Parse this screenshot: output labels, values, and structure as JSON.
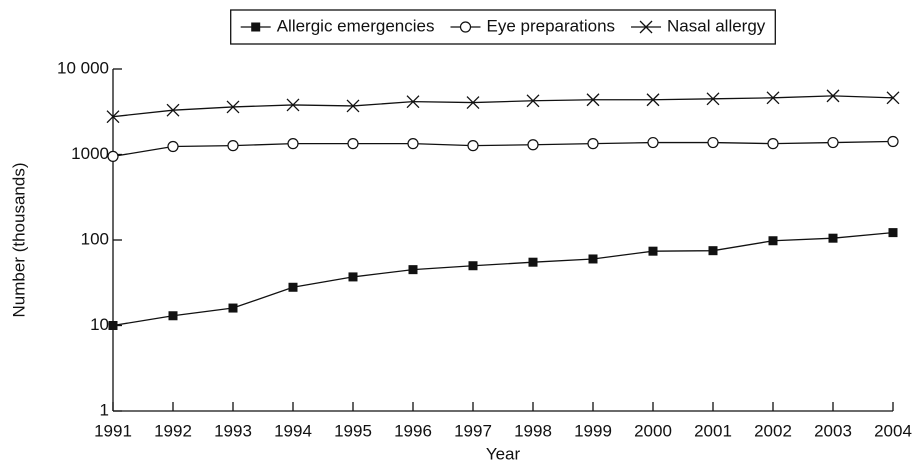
{
  "chart_data": {
    "type": "line",
    "x_label": "Year",
    "y_label": "Number (thousands)",
    "x": [
      1991,
      1992,
      1993,
      1994,
      1995,
      1996,
      1997,
      1998,
      1999,
      2000,
      2001,
      2002,
      2003,
      2004
    ],
    "xlim": [
      1991,
      2004
    ],
    "xticks": [
      1991,
      1992,
      1993,
      1994,
      1995,
      1996,
      1997,
      1998,
      1999,
      2000,
      2001,
      2002,
      2003,
      2004
    ],
    "ylim": [
      1,
      10000
    ],
    "y_scale": "log",
    "yticks": [
      1,
      10,
      100,
      1000,
      {
        "value": 10000,
        "label": "10 000"
      }
    ],
    "legend": "top",
    "series": [
      {
        "name": "Allergic emergencies",
        "color": "#111111",
        "marker": "square",
        "values": [
          10,
          13,
          16,
          28,
          37,
          45,
          50,
          55,
          60,
          74,
          75,
          98,
          105,
          122
        ]
      },
      {
        "name": "Eye preparations",
        "color": "#111111",
        "marker": "circle",
        "values": [
          950,
          1240,
          1270,
          1340,
          1340,
          1340,
          1270,
          1300,
          1340,
          1380,
          1380,
          1340,
          1380,
          1420
        ]
      },
      {
        "name": "Nasal allergy",
        "color": "#111111",
        "marker": "cross",
        "values": [
          2770,
          3300,
          3600,
          3800,
          3700,
          4150,
          4050,
          4250,
          4370,
          4370,
          4480,
          4600,
          4850,
          4600
        ]
      }
    ]
  }
}
